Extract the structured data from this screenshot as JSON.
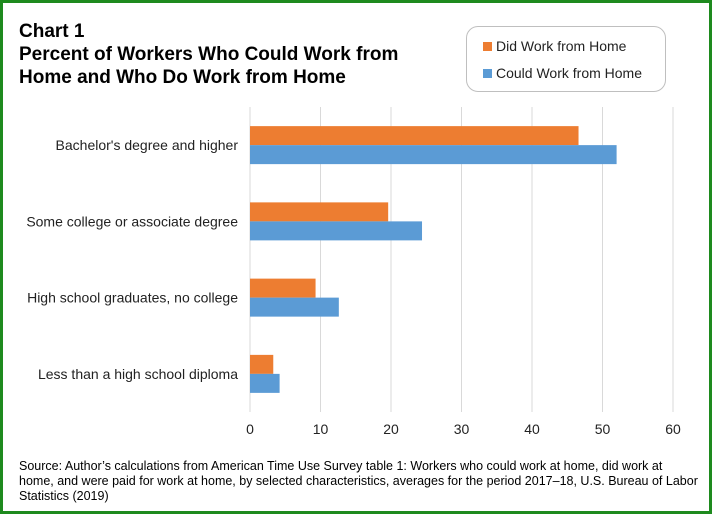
{
  "chart_data": {
    "type": "bar",
    "orientation": "horizontal",
    "title_lines": [
      "Chart 1",
      "Percent of Workers Who Could Work from",
      "Home and Who Do Work from Home"
    ],
    "categories": [
      "Bachelor's degree and higher",
      "Some college or associate degree",
      "High school graduates, no college",
      "Less than a high school diploma"
    ],
    "series": [
      {
        "name": "Did Work from Home",
        "color": "#ed7d31",
        "values": [
          46.6,
          19.6,
          9.3,
          3.3
        ]
      },
      {
        "name": "Could Work from Home",
        "color": "#5b9bd5",
        "values": [
          52.0,
          24.4,
          12.6,
          4.2
        ]
      }
    ],
    "xlim": [
      0,
      60
    ],
    "xticks": [
      "0",
      "10",
      "20",
      "30",
      "40",
      "50",
      "60"
    ],
    "xlabel": "",
    "ylabel": "",
    "grid": true,
    "legend_placement": "top-right",
    "source": "Source: Author’s calculations from American Time Use Survey table 1: Workers who could work at home, did work at home, and were paid for work at home, by selected characteristics, averages for the period 2017–18, U.S. Bureau of Labor Statistics (2019)"
  },
  "colors": {
    "frame": "#1e8a1e",
    "grid": "#d9d9d9"
  }
}
